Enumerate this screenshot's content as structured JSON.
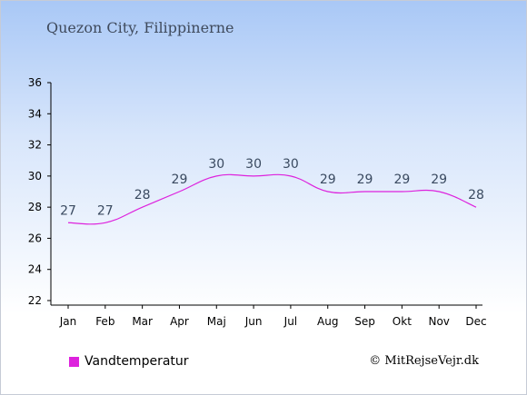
{
  "title": "Quezon City, Filippinerne",
  "legend_label": "Vandtemperatur",
  "copyright": "© MitRejseVejr.dk",
  "colors": {
    "series": "#dd22dd",
    "axis": "#000000",
    "label": "#3a4a60"
  },
  "chart_data": {
    "type": "line",
    "categories": [
      "Jan",
      "Feb",
      "Mar",
      "Apr",
      "Maj",
      "Jun",
      "Jul",
      "Aug",
      "Sep",
      "Okt",
      "Nov",
      "Dec"
    ],
    "series": [
      {
        "name": "Vandtemperatur",
        "values": [
          27,
          27,
          28,
          29,
          30,
          30,
          30,
          29,
          29,
          29,
          29,
          28
        ]
      }
    ],
    "ylim": [
      22,
      36
    ],
    "yticks": [
      22,
      24,
      26,
      28,
      30,
      32,
      34,
      36
    ],
    "grid": false,
    "legend": "bottom-left"
  }
}
